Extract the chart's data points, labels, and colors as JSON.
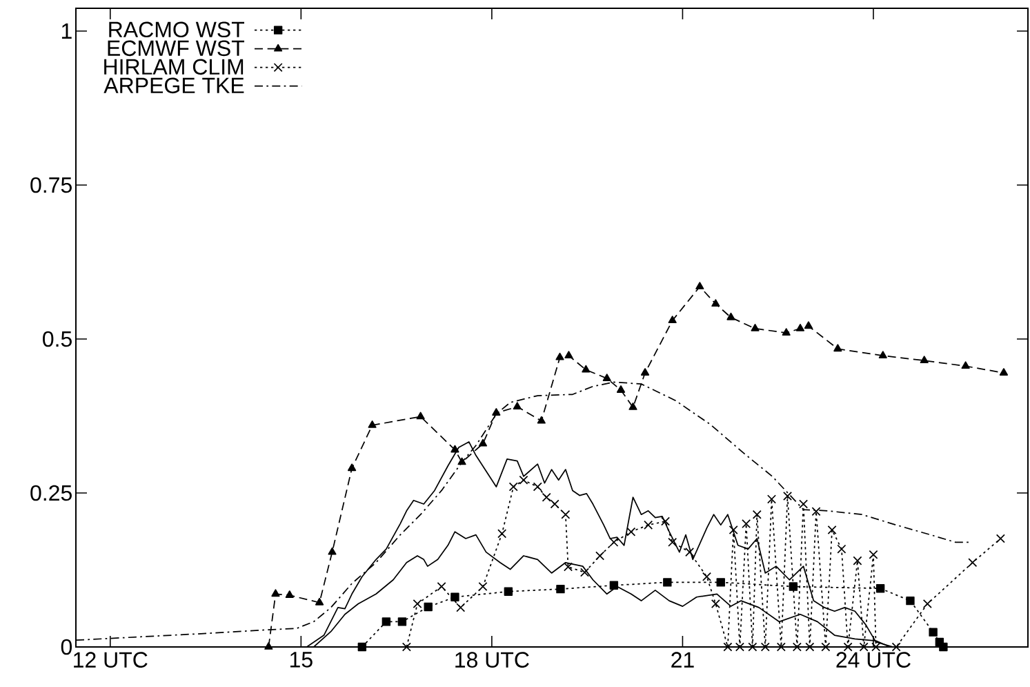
{
  "chart_data": {
    "type": "line",
    "xlim": [
      11.46,
      26.43
    ],
    "ylim": [
      0,
      1.037
    ],
    "xticks": [
      {
        "value": 12,
        "label": "12 UTC"
      },
      15,
      {
        "value": 18,
        "label": "18 UTC"
      },
      21,
      {
        "value": 24,
        "label": "24 UTC"
      }
    ],
    "yticks": [
      0,
      0.25,
      0.5,
      0.75,
      1
    ],
    "grid": false,
    "legend": "top left",
    "series": [
      {
        "name": "RACMO WST",
        "color": "#000000",
        "line_style": "dotted",
        "marker": "square",
        "x": [
          15.96,
          16.34,
          16.59,
          17.0,
          17.42,
          18.26,
          19.08,
          19.92,
          20.76,
          21.6,
          22.74,
          24.11,
          24.58,
          24.94,
          25.04,
          25.1
        ],
        "values": [
          0,
          0.041,
          0.041,
          0.065,
          0.081,
          0.09,
          0.094,
          0.1,
          0.105,
          0.105,
          0.098,
          0.095,
          0.075,
          0.024,
          0.008,
          0
        ]
      },
      {
        "name": "ECMWF WST",
        "color": "#000000",
        "line_style": "dashed",
        "marker": "triangle",
        "x": [
          14.49,
          14.6,
          14.82,
          15.29,
          15.49,
          15.8,
          16.12,
          16.88,
          17.42,
          17.53,
          17.86,
          18.07,
          18.4,
          18.78,
          19.07,
          19.21,
          19.48,
          19.81,
          20.03,
          20.22,
          20.41,
          20.84,
          21.27,
          21.52,
          21.76,
          22.14,
          22.63,
          22.85,
          22.98,
          23.44,
          24.15,
          24.8,
          25.45,
          26.05
        ],
        "values": [
          0,
          0.086,
          0.084,
          0.072,
          0.154,
          0.29,
          0.36,
          0.374,
          0.32,
          0.3,
          0.33,
          0.38,
          0.39,
          0.367,
          0.47,
          0.473,
          0.45,
          0.436,
          0.417,
          0.389,
          0.445,
          0.53,
          0.585,
          0.557,
          0.535,
          0.517,
          0.51,
          0.517,
          0.521,
          0.484,
          0.473,
          0.465,
          0.456,
          0.445
        ]
      },
      {
        "name": "HIRLAM CLIM",
        "color": "#000000",
        "line_style": "dotted",
        "marker": "cross",
        "x": [
          16.66,
          16.83,
          17.21,
          17.51,
          17.86,
          18.16,
          18.34,
          18.5,
          18.72,
          18.86,
          18.99,
          19.16,
          19.2,
          19.46,
          19.7,
          19.92,
          20.19,
          20.46,
          20.73,
          20.84,
          21.11,
          21.38,
          21.52,
          21.71,
          21.8,
          21.9,
          22.0,
          22.1,
          22.17,
          22.3,
          22.4,
          22.55,
          22.65,
          22.8,
          22.9,
          23.0,
          23.1,
          23.25,
          23.35,
          23.5,
          23.6,
          23.75,
          23.85,
          24.0,
          24.04,
          24.36,
          24.85,
          25.56,
          26.0
        ],
        "values": [
          0,
          0.07,
          0.098,
          0.064,
          0.098,
          0.184,
          0.26,
          0.271,
          0.26,
          0.243,
          0.232,
          0.215,
          0.13,
          0.121,
          0.148,
          0.17,
          0.187,
          0.198,
          0.204,
          0.17,
          0.154,
          0.114,
          0.07,
          0,
          0.19,
          0,
          0.2,
          0,
          0.215,
          0,
          0.24,
          0,
          0.245,
          0,
          0.232,
          0,
          0.22,
          0,
          0.19,
          0.159,
          0,
          0.14,
          0,
          0.15,
          0,
          0,
          0.07,
          0.137,
          0.176
        ]
      },
      {
        "name": "ARPEGE TKE",
        "color": "#000000",
        "line_style": "dashdot",
        "marker": "none",
        "x": [
          11.46,
          13.52,
          14.49,
          14.93,
          15.2,
          15.47,
          15.8,
          16.18,
          16.56,
          16.88,
          17.21,
          17.53,
          17.75,
          18.07,
          18.29,
          18.72,
          19.27,
          19.59,
          19.92,
          20.35,
          20.89,
          21.44,
          21.98,
          22.41,
          22.9,
          23.28,
          23.82,
          24.36,
          24.9,
          25.29,
          25.5
        ],
        "values": [
          0.011,
          0.022,
          0.028,
          0.03,
          0.041,
          0.064,
          0.103,
          0.137,
          0.182,
          0.215,
          0.254,
          0.3,
          0.327,
          0.378,
          0.397,
          0.408,
          0.41,
          0.423,
          0.43,
          0.427,
          0.4,
          0.361,
          0.313,
          0.277,
          0.223,
          0.221,
          0.215,
          0.198,
          0.182,
          0.17,
          0.17
        ]
      },
      {
        "color": "#000000",
        "line_style": "solid",
        "marker": "none",
        "x": [
          11.46,
          15.09,
          15.36,
          15.58,
          15.69,
          15.8,
          15.96,
          16.18,
          16.34,
          16.56,
          16.66,
          16.77,
          16.93,
          17.1,
          17.31,
          17.48,
          17.64,
          17.75,
          18.07,
          18.24,
          18.4,
          18.5,
          18.72,
          18.83,
          18.94,
          19.05,
          19.16,
          19.27,
          19.38,
          19.49,
          19.59,
          19.76,
          19.86,
          19.97,
          20.08,
          20.22,
          20.35,
          20.46,
          20.57,
          20.68,
          20.79,
          20.95,
          21.05,
          21.16,
          21.38,
          21.49,
          21.6,
          21.71,
          21.87,
          22.03,
          22.17,
          22.3,
          22.47,
          22.68,
          22.9,
          23.06,
          23.23,
          23.39,
          23.55,
          23.71,
          23.88,
          24.04,
          24.31,
          26.05
        ],
        "values": [
          0,
          0,
          0.019,
          0.064,
          0.062,
          0.086,
          0.114,
          0.142,
          0.159,
          0.2,
          0.221,
          0.238,
          0.232,
          0.254,
          0.294,
          0.324,
          0.333,
          0.311,
          0.26,
          0.305,
          0.302,
          0.277,
          0.297,
          0.266,
          0.288,
          0.271,
          0.288,
          0.254,
          0.246,
          0.249,
          0.232,
          0.198,
          0.176,
          0.178,
          0.165,
          0.243,
          0.215,
          0.221,
          0.21,
          0.212,
          0.187,
          0.154,
          0.182,
          0.142,
          0.193,
          0.215,
          0.198,
          0.215,
          0.165,
          0.159,
          0.176,
          0.12,
          0.131,
          0.109,
          0.131,
          0.075,
          0.064,
          0.058,
          0.064,
          0.058,
          0.036,
          0.008,
          0,
          0
        ]
      },
      {
        "color": "#000000",
        "line_style": "solid",
        "marker": "none",
        "x": [
          11.46,
          15.2,
          15.47,
          15.69,
          15.9,
          16.18,
          16.45,
          16.66,
          16.83,
          16.93,
          16.99,
          17.15,
          17.31,
          17.42,
          17.59,
          17.75,
          17.91,
          18.13,
          18.29,
          18.5,
          18.72,
          18.94,
          19.16,
          19.43,
          19.59,
          19.81,
          19.97,
          20.19,
          20.35,
          20.57,
          20.79,
          21.0,
          21.22,
          21.54,
          21.76,
          21.92,
          22.2,
          22.52,
          22.85,
          23.12,
          23.39,
          23.71,
          24.04,
          24.26,
          26.05
        ],
        "values": [
          0,
          0,
          0.025,
          0.053,
          0.07,
          0.086,
          0.109,
          0.137,
          0.148,
          0.142,
          0.131,
          0.142,
          0.165,
          0.187,
          0.176,
          0.182,
          0.154,
          0.137,
          0.126,
          0.148,
          0.142,
          0.12,
          0.137,
          0.131,
          0.109,
          0.086,
          0.098,
          0.086,
          0.075,
          0.092,
          0.075,
          0.066,
          0.081,
          0.086,
          0.066,
          0.075,
          0.064,
          0.041,
          0.053,
          0.041,
          0.019,
          0.013,
          0.01,
          0,
          0
        ]
      }
    ]
  }
}
